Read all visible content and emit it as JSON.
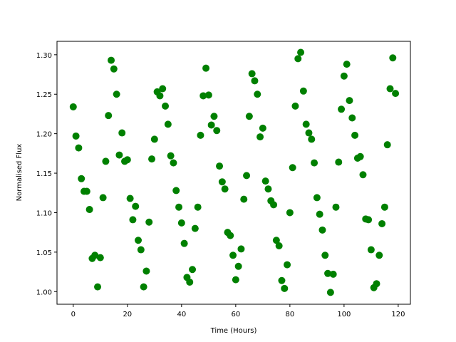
{
  "chart_data": {
    "type": "scatter",
    "xlabel": "Time (Hours)",
    "ylabel": "Normalised Flux",
    "color": "#008000",
    "x": [
      0,
      1,
      2,
      3,
      4,
      5,
      6,
      7,
      8,
      9,
      10,
      11,
      12,
      13,
      14,
      15,
      16,
      17,
      18,
      19,
      20,
      21,
      22,
      23,
      24,
      25,
      26,
      27,
      28,
      29,
      30,
      31,
      32,
      33,
      34,
      35,
      36,
      37,
      38,
      39,
      40,
      41,
      42,
      43,
      44,
      45,
      46,
      47,
      48,
      49,
      50,
      51,
      52,
      53,
      54,
      55,
      56,
      57,
      58,
      59,
      60,
      61,
      62,
      63,
      64,
      65,
      66,
      67,
      68,
      69,
      70,
      71,
      72,
      73,
      74,
      75,
      76,
      77,
      78,
      79,
      80,
      81,
      82,
      83,
      84,
      85,
      86,
      87,
      88,
      89,
      90,
      91,
      92,
      93,
      94,
      95,
      96,
      97,
      98,
      99,
      100,
      101,
      102,
      103,
      104,
      105,
      106,
      107,
      108,
      109,
      110,
      111,
      112,
      113,
      114,
      115,
      116,
      117,
      118,
      119
    ],
    "values": [
      1.234,
      1.197,
      1.182,
      1.143,
      1.127,
      1.127,
      1.104,
      1.042,
      1.046,
      1.006,
      1.043,
      1.119,
      1.165,
      1.223,
      1.293,
      1.282,
      1.25,
      1.173,
      1.201,
      1.165,
      1.167,
      1.118,
      1.091,
      1.108,
      1.065,
      1.053,
      1.006,
      1.026,
      1.088,
      1.168,
      1.193,
      1.253,
      1.248,
      1.257,
      1.235,
      1.212,
      1.172,
      1.163,
      1.128,
      1.107,
      1.087,
      1.061,
      1.018,
      1.012,
      1.028,
      1.08,
      1.107,
      1.198,
      1.248,
      1.283,
      1.249,
      1.211,
      1.222,
      1.204,
      1.159,
      1.139,
      1.13,
      1.075,
      1.071,
      1.046,
      1.015,
      1.032,
      1.054,
      1.117,
      1.147,
      1.222,
      1.276,
      1.267,
      1.25,
      1.196,
      1.207,
      1.14,
      1.13,
      1.115,
      1.11,
      1.065,
      1.058,
      1.014,
      1.004,
      1.034,
      1.1,
      1.157,
      1.235,
      1.295,
      1.303,
      1.254,
      1.212,
      1.201,
      1.193,
      1.163,
      1.119,
      1.098,
      1.078,
      1.046,
      1.023,
      0.999,
      1.022,
      1.107,
      1.164,
      1.231,
      1.273,
      1.288,
      1.242,
      1.22,
      1.198,
      1.169,
      1.171,
      1.148,
      1.092,
      1.091,
      1.053,
      1.005,
      1.01,
      1.046,
      1.086,
      1.107,
      1.186,
      1.257,
      1.296,
      1.251
    ],
    "xlim": [
      -6,
      124.5
    ],
    "ylim": [
      0.984,
      1.317
    ],
    "xticks": [
      0,
      20,
      40,
      60,
      80,
      100,
      120
    ],
    "yticks": [
      {
        "value": 1,
        "label": "1.00"
      },
      {
        "value": 1.05,
        "label": "1.05"
      },
      {
        "value": 1.1,
        "label": "1.10"
      },
      {
        "value": 1.15,
        "label": "1.15"
      },
      {
        "value": 1.2,
        "label": "1.20"
      },
      {
        "value": 1.25,
        "label": "1.25"
      },
      {
        "value": 1.3,
        "label": "1.30"
      }
    ]
  }
}
